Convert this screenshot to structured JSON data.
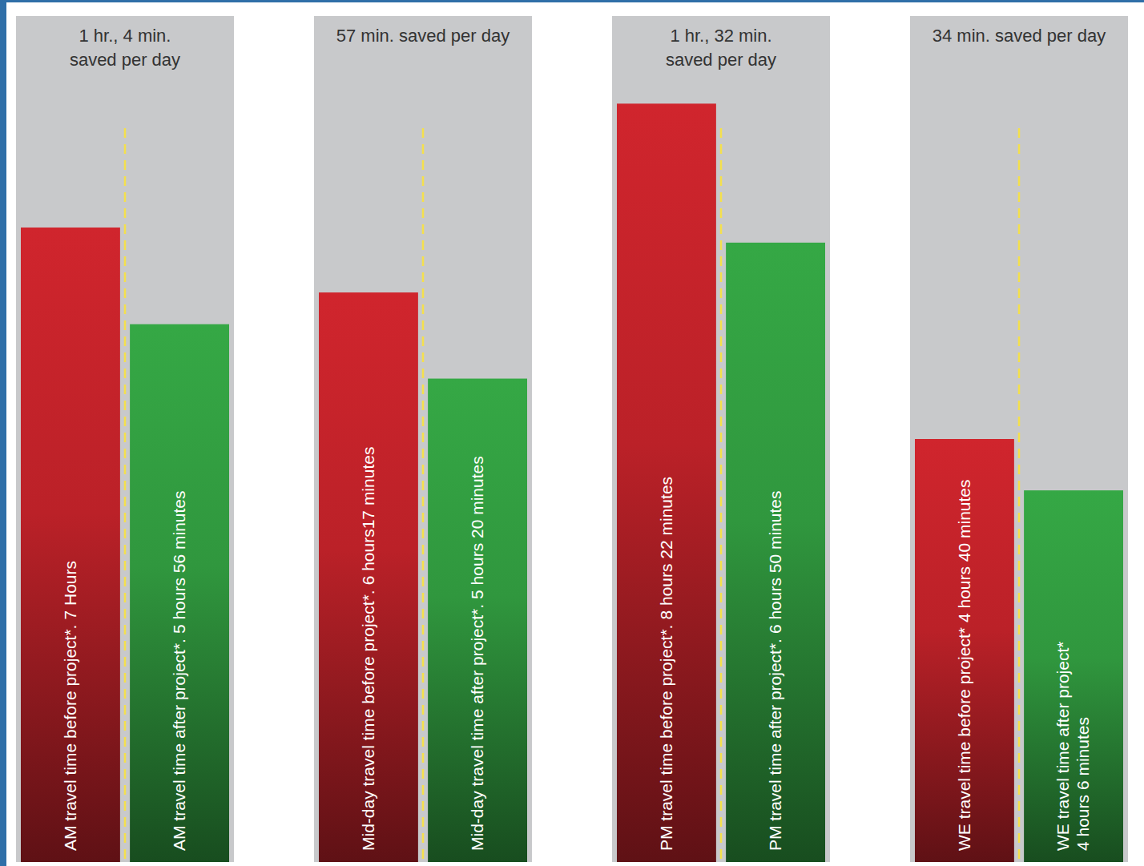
{
  "chart_data": [
    {
      "type": "bar",
      "title": "1 hr., 4 min. saved per day",
      "categories": [
        "AM travel time before project*.",
        "AM travel time after project*."
      ],
      "values": [
        420,
        356
      ],
      "value_labels": [
        "7 Hours",
        "5 hours 56 minutes"
      ],
      "colors": [
        "#d0252d",
        "#35a845"
      ],
      "ylim": [
        0,
        560
      ],
      "data_labels": true,
      "tick_labels": false
    },
    {
      "type": "bar",
      "title": "57 min. saved per day",
      "categories": [
        "Mid-day travel time before project*.",
        "Mid-day travel time after project*."
      ],
      "values": [
        377,
        320
      ],
      "value_labels": [
        "6 hours17 minutes",
        "5 hours 20 minutes"
      ],
      "colors": [
        "#d0252d",
        "#35a845"
      ],
      "ylim": [
        0,
        560
      ],
      "data_labels": true,
      "tick_labels": false
    },
    {
      "type": "bar",
      "title": "1 hr., 32 min. saved per day",
      "categories": [
        "PM travel time before project*.",
        "PM travel time after project*."
      ],
      "values": [
        502,
        410
      ],
      "value_labels": [
        "8 hours 22 minutes",
        "6 hours 50 minutes"
      ],
      "colors": [
        "#d0252d",
        "#35a845"
      ],
      "ylim": [
        0,
        560
      ],
      "data_labels": true,
      "tick_labels": false
    },
    {
      "type": "bar",
      "title": "34 min. saved per day",
      "categories": [
        "WE travel time before project*",
        "WE travel time after project*"
      ],
      "values": [
        280,
        246
      ],
      "value_labels": [
        "4 hours 40 minutes",
        "4 hours 6 minutes"
      ],
      "colors": [
        "#d0252d",
        "#35a845"
      ],
      "ylim": [
        0,
        560
      ],
      "data_labels": true,
      "tick_labels": false
    }
  ]
}
